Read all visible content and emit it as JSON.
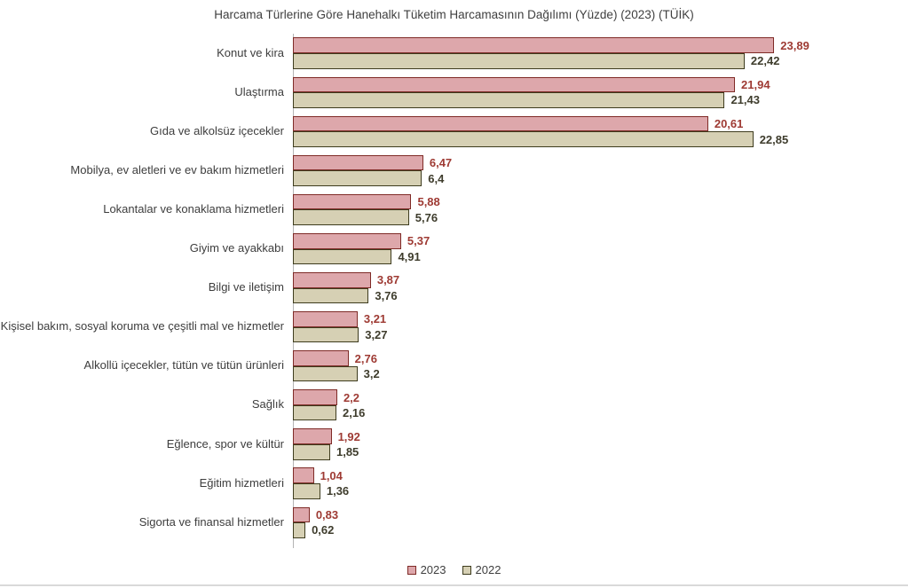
{
  "title": "Harcama Türlerine Göre Hanehalkı Tüketim Harcamasının Dağılımı (Yüzde) (2023) (TÜİK)",
  "chart_data": {
    "type": "bar",
    "orientation": "horizontal",
    "title": "Harcama Türlerine Göre Hanehalkı Tüketim Harcamasının Dağılımı (Yüzde) (2023) (TÜİK)",
    "xlabel": "",
    "ylabel": "",
    "xlim": [
      0,
      24.6
    ],
    "grid": false,
    "legend_position": "bottom",
    "value_format": "comma-decimal",
    "categories": [
      "Konut ve kira",
      "Ulaştırma",
      "Gıda ve alkolsüz içecekler",
      "Mobilya, ev aletleri ve ev bakım hizmetleri",
      "Lokantalar ve konaklama hizmetleri",
      "Giyim ve ayakkabı",
      "Bilgi ve iletişim",
      "Kişisel bakım, sosyal koruma ve çeşitli mal ve hizmetler",
      "Alkollü içecekler, tütün ve tütün ürünleri",
      "Sağlık",
      "Eğlence, spor ve kültür",
      "Eğitim hizmetleri",
      "Sigorta ve finansal hizmetler"
    ],
    "series": [
      {
        "name": "2023",
        "values": [
          23.89,
          21.94,
          20.61,
          6.47,
          5.88,
          5.37,
          3.87,
          3.21,
          2.76,
          2.2,
          1.92,
          1.04,
          0.83
        ],
        "display_labels": [
          "23,89",
          "21,94",
          "20,61",
          "6,47",
          "5,88",
          "5,37",
          "3,87",
          "3,21",
          "2,76",
          "2,2",
          "1,92",
          "1,04",
          "0,83"
        ],
        "fill_color": "#dda7ab",
        "border_color": "#7f2b27",
        "label_color": "#9e3a33"
      },
      {
        "name": "2022",
        "values": [
          22.42,
          21.43,
          22.85,
          6.4,
          5.76,
          4.91,
          3.76,
          3.27,
          3.2,
          2.16,
          1.85,
          1.36,
          0.62
        ],
        "display_labels": [
          "22,42",
          "21,43",
          "22,85",
          "6,4",
          "5,76",
          "4,91",
          "3,76",
          "3,27",
          "3,2",
          "2,16",
          "1,85",
          "1,36",
          "0,62"
        ],
        "fill_color": "#d6d0b4",
        "border_color": "#3e3c1e",
        "label_color": "#3e3c2c"
      }
    ]
  },
  "legend": {
    "items": [
      {
        "label": "2023"
      },
      {
        "label": "2022"
      }
    ]
  }
}
